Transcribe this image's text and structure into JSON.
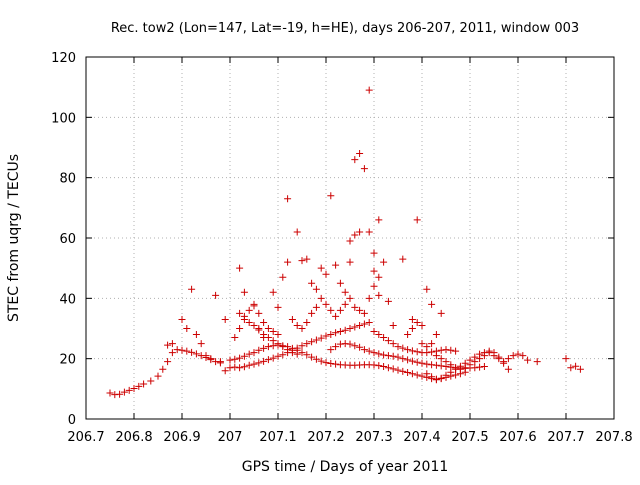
{
  "chart_data": {
    "type": "scatter",
    "title": "Rec. tow2 (Lon=147, Lat=-19, h=HE), days 206-207, 2011, window 003",
    "xlabel": "GPS time / Days of year 2011",
    "ylabel": "STEC from uqrg / TECUs",
    "xlim": [
      206.7,
      207.8
    ],
    "ylim": [
      0,
      120
    ],
    "xticks": [
      "206.7",
      "206.8",
      "206.9",
      "207",
      "207.1",
      "207.2",
      "207.3",
      "207.4",
      "207.5",
      "207.6",
      "207.7",
      "207.8"
    ],
    "yticks": [
      "0",
      "20",
      "40",
      "60",
      "80",
      "100",
      "120"
    ],
    "grid": true,
    "marker": "+",
    "color": "#cc0000",
    "series": [
      {
        "points": [
          [
            206.75,
            8.6
          ],
          [
            206.76,
            8.1
          ],
          [
            206.77,
            8.2
          ],
          [
            206.78,
            8.9
          ],
          [
            206.79,
            9.5
          ],
          [
            206.8,
            10.1
          ],
          [
            206.81,
            10.8
          ],
          [
            206.82,
            11.6
          ],
          [
            206.835,
            12.6
          ],
          [
            206.85,
            14.2
          ],
          [
            206.86,
            16.5
          ],
          [
            206.87,
            19.0
          ],
          [
            206.88,
            22.0
          ],
          [
            206.89,
            23.0
          ],
          [
            206.9,
            22.8
          ],
          [
            206.91,
            22.5
          ],
          [
            206.92,
            22.1
          ],
          [
            206.93,
            21.6
          ],
          [
            206.94,
            21.0
          ],
          [
            206.95,
            20.4
          ],
          [
            206.96,
            19.7
          ],
          [
            206.97,
            19.0
          ],
          [
            206.98,
            18.6
          ],
          [
            206.87,
            24.5
          ],
          [
            206.88,
            25.0
          ],
          [
            206.9,
            33.0
          ],
          [
            206.91,
            30.0
          ],
          [
            206.92,
            43.0
          ],
          [
            206.93,
            28.0
          ],
          [
            206.94,
            25.0
          ],
          [
            206.95,
            21.0
          ],
          [
            206.96,
            20.0
          ],
          [
            206.97,
            41.0
          ],
          [
            206.98,
            19.0
          ],
          [
            206.99,
            16.0
          ],
          [
            206.99,
            33.0
          ],
          [
            207.0,
            17.0
          ],
          [
            207.01,
            17.2
          ],
          [
            207.02,
            17.0
          ],
          [
            207.03,
            17.3
          ],
          [
            207.04,
            17.8
          ],
          [
            207.05,
            18.2
          ],
          [
            207.06,
            18.6
          ],
          [
            207.07,
            19.1
          ],
          [
            207.08,
            19.7
          ],
          [
            207.09,
            20.2
          ],
          [
            207.1,
            20.8
          ],
          [
            207.11,
            21.3
          ],
          [
            207.12,
            22.0
          ],
          [
            207.13,
            22.8
          ],
          [
            207.14,
            23.5
          ],
          [
            207.15,
            24.3
          ],
          [
            207.16,
            25.0
          ],
          [
            207.17,
            25.6
          ],
          [
            207.18,
            26.2
          ],
          [
            207.19,
            26.8
          ],
          [
            207.2,
            27.5
          ],
          [
            207.21,
            28.0
          ],
          [
            207.22,
            28.6
          ],
          [
            207.23,
            29.0
          ],
          [
            207.24,
            29.4
          ],
          [
            207.25,
            30.0
          ],
          [
            207.26,
            30.5
          ],
          [
            207.27,
            31.0
          ],
          [
            207.28,
            31.5
          ],
          [
            207.29,
            32.0
          ],
          [
            207.0,
            19.5
          ],
          [
            207.01,
            19.8
          ],
          [
            207.02,
            20.2
          ],
          [
            207.03,
            20.8
          ],
          [
            207.04,
            21.5
          ],
          [
            207.05,
            22.0
          ],
          [
            207.06,
            22.8
          ],
          [
            207.07,
            23.4
          ],
          [
            207.08,
            24.0
          ],
          [
            207.09,
            24.3
          ],
          [
            207.1,
            24.5
          ],
          [
            207.11,
            24.3
          ],
          [
            207.12,
            24.0
          ],
          [
            207.13,
            23.4
          ],
          [
            207.14,
            22.8
          ],
          [
            207.15,
            22.0
          ],
          [
            207.16,
            21.3
          ],
          [
            207.17,
            20.5
          ],
          [
            207.18,
            19.8
          ],
          [
            207.19,
            19.2
          ],
          [
            207.2,
            18.7
          ],
          [
            207.21,
            18.4
          ],
          [
            207.22,
            18.2
          ],
          [
            207.23,
            18.0
          ],
          [
            207.24,
            17.9
          ],
          [
            207.25,
            17.8
          ],
          [
            207.01,
            27.0
          ],
          [
            207.02,
            30.0
          ],
          [
            207.03,
            33.0
          ],
          [
            207.04,
            32.0
          ],
          [
            207.05,
            31.0
          ],
          [
            207.06,
            29.5
          ],
          [
            207.07,
            28.0
          ],
          [
            207.08,
            27.0
          ],
          [
            207.09,
            26.0
          ],
          [
            207.1,
            25.0
          ],
          [
            207.11,
            24.0
          ],
          [
            207.12,
            23.0
          ],
          [
            207.13,
            22.0
          ],
          [
            207.14,
            21.5
          ],
          [
            207.02,
            35.0
          ],
          [
            207.03,
            34.0
          ],
          [
            207.04,
            36.0
          ],
          [
            207.05,
            37.5
          ],
          [
            207.06,
            35.0
          ],
          [
            207.07,
            32.0
          ],
          [
            207.08,
            30.0
          ],
          [
            207.09,
            29.0
          ],
          [
            207.1,
            28.0
          ],
          [
            207.02,
            50.0
          ],
          [
            207.03,
            42.0
          ],
          [
            207.05,
            38.0
          ],
          [
            207.06,
            30.0
          ],
          [
            207.07,
            27.0
          ],
          [
            207.09,
            42.0
          ],
          [
            207.1,
            37.0
          ],
          [
            207.11,
            47.0
          ],
          [
            207.12,
            52.0
          ],
          [
            207.12,
            73.0
          ],
          [
            207.14,
            62.0
          ],
          [
            207.15,
            52.5
          ],
          [
            207.16,
            53.0
          ],
          [
            207.17,
            45.0
          ],
          [
            207.18,
            43.0
          ],
          [
            207.19,
            50.0
          ],
          [
            207.2,
            48.0
          ],
          [
            207.21,
            74.0
          ],
          [
            207.22,
            51.0
          ],
          [
            207.23,
            45.0
          ],
          [
            207.24,
            42.0
          ],
          [
            207.25,
            52.0
          ],
          [
            207.25,
            59.0
          ],
          [
            207.26,
            61.0
          ],
          [
            207.27,
            62.0
          ],
          [
            207.26,
            86.0
          ],
          [
            207.27,
            88.0
          ],
          [
            207.28,
            83.0
          ],
          [
            207.29,
            62.0
          ],
          [
            207.29,
            109.0
          ],
          [
            207.3,
            55.0
          ],
          [
            207.3,
            49.0
          ],
          [
            207.31,
            66.0
          ],
          [
            207.31,
            47.0
          ],
          [
            207.32,
            52.0
          ],
          [
            207.33,
            39.0
          ],
          [
            207.34,
            31.0
          ],
          [
            207.36,
            53.0
          ],
          [
            207.38,
            33.0
          ],
          [
            207.39,
            66.0
          ],
          [
            207.4,
            31.0
          ],
          [
            207.41,
            43.0
          ],
          [
            207.42,
            38.0
          ],
          [
            207.43,
            28.0
          ],
          [
            207.44,
            35.0
          ],
          [
            207.13,
            33.0
          ],
          [
            207.14,
            31.0
          ],
          [
            207.15,
            30.0
          ],
          [
            207.16,
            32.0
          ],
          [
            207.17,
            35.0
          ],
          [
            207.18,
            37.0
          ],
          [
            207.19,
            40.0
          ],
          [
            207.2,
            38.0
          ],
          [
            207.21,
            36.0
          ],
          [
            207.22,
            34.0
          ],
          [
            207.23,
            36.0
          ],
          [
            207.24,
            38.0
          ],
          [
            207.25,
            40.0
          ],
          [
            207.26,
            37.0
          ],
          [
            207.27,
            36.0
          ],
          [
            207.28,
            35.0
          ],
          [
            207.29,
            40.0
          ],
          [
            207.3,
            44.0
          ],
          [
            207.31,
            41.0
          ],
          [
            207.21,
            23.0
          ],
          [
            207.22,
            24.0
          ],
          [
            207.23,
            24.8
          ],
          [
            207.24,
            25.0
          ],
          [
            207.25,
            24.8
          ],
          [
            207.26,
            24.3
          ],
          [
            207.27,
            23.8
          ],
          [
            207.28,
            23.0
          ],
          [
            207.29,
            22.5
          ],
          [
            207.3,
            22.0
          ],
          [
            207.31,
            21.6
          ],
          [
            207.32,
            21.2
          ],
          [
            207.33,
            21.0
          ],
          [
            207.34,
            20.8
          ],
          [
            207.35,
            20.5
          ],
          [
            207.36,
            20.0
          ],
          [
            207.37,
            19.6
          ],
          [
            207.38,
            19.2
          ],
          [
            207.39,
            18.8
          ],
          [
            207.4,
            18.5
          ],
          [
            207.41,
            18.2
          ],
          [
            207.42,
            18.0
          ],
          [
            207.43,
            17.8
          ],
          [
            207.44,
            17.6
          ],
          [
            207.45,
            17.4
          ],
          [
            207.46,
            17.2
          ],
          [
            207.47,
            17.0
          ],
          [
            207.48,
            16.9
          ],
          [
            207.49,
            16.8
          ],
          [
            207.5,
            16.9
          ],
          [
            207.51,
            17.0
          ],
          [
            207.52,
            17.2
          ],
          [
            207.53,
            17.4
          ],
          [
            207.26,
            17.8
          ],
          [
            207.27,
            17.9
          ],
          [
            207.28,
            18.0
          ],
          [
            207.29,
            18.0
          ],
          [
            207.3,
            17.9
          ],
          [
            207.31,
            17.7
          ],
          [
            207.32,
            17.4
          ],
          [
            207.33,
            17.0
          ],
          [
            207.34,
            16.6
          ],
          [
            207.35,
            16.2
          ],
          [
            207.36,
            15.8
          ],
          [
            207.37,
            15.4
          ],
          [
            207.38,
            15.0
          ],
          [
            207.39,
            14.6
          ],
          [
            207.4,
            14.2
          ],
          [
            207.41,
            13.8
          ],
          [
            207.42,
            13.4
          ],
          [
            207.43,
            13.2
          ],
          [
            207.44,
            13.4
          ],
          [
            207.45,
            13.8
          ],
          [
            207.46,
            14.2
          ],
          [
            207.47,
            14.6
          ],
          [
            207.48,
            15.0
          ],
          [
            207.49,
            15.5
          ],
          [
            207.3,
            29.0
          ],
          [
            207.31,
            28.0
          ],
          [
            207.32,
            27.0
          ],
          [
            207.33,
            26.0
          ],
          [
            207.34,
            25.0
          ],
          [
            207.35,
            24.0
          ],
          [
            207.36,
            23.5
          ],
          [
            207.37,
            23.0
          ],
          [
            207.38,
            22.6
          ],
          [
            207.39,
            22.3
          ],
          [
            207.4,
            22.0
          ],
          [
            207.41,
            22.0
          ],
          [
            207.42,
            22.2
          ],
          [
            207.43,
            22.5
          ],
          [
            207.44,
            22.8
          ],
          [
            207.45,
            23.0
          ],
          [
            207.46,
            22.8
          ],
          [
            207.47,
            22.5
          ],
          [
            207.37,
            28.0
          ],
          [
            207.38,
            30.0
          ],
          [
            207.39,
            32.0
          ],
          [
            207.4,
            25.0
          ],
          [
            207.41,
            24.0
          ],
          [
            207.42,
            25.0
          ],
          [
            207.43,
            21.0
          ],
          [
            207.44,
            20.0
          ],
          [
            207.45,
            19.0
          ],
          [
            207.46,
            18.0
          ],
          [
            207.47,
            17.0
          ],
          [
            207.48,
            16.5
          ],
          [
            207.49,
            17.0
          ],
          [
            207.5,
            18.0
          ],
          [
            207.51,
            19.0
          ],
          [
            207.52,
            20.0
          ],
          [
            207.53,
            21.0
          ],
          [
            207.54,
            22.0
          ],
          [
            207.55,
            21.0
          ],
          [
            207.56,
            20.0
          ],
          [
            207.57,
            19.0
          ],
          [
            207.58,
            20.0
          ],
          [
            207.59,
            21.0
          ],
          [
            207.6,
            21.5
          ],
          [
            207.61,
            21.0
          ],
          [
            207.62,
            19.5
          ],
          [
            207.64,
            19.0
          ],
          [
            207.41,
            15.0
          ],
          [
            207.42,
            14.0
          ],
          [
            207.43,
            13.0
          ],
          [
            207.44,
            13.5
          ],
          [
            207.45,
            14.5
          ],
          [
            207.46,
            15.5
          ],
          [
            207.47,
            16.5
          ],
          [
            207.48,
            17.5
          ],
          [
            207.49,
            18.5
          ],
          [
            207.5,
            19.5
          ],
          [
            207.51,
            20.5
          ],
          [
            207.52,
            21.5
          ],
          [
            207.53,
            22.0
          ],
          [
            207.54,
            22.5
          ],
          [
            207.55,
            22.0
          ],
          [
            207.56,
            20.5
          ],
          [
            207.57,
            18.5
          ],
          [
            207.58,
            16.5
          ],
          [
            207.7,
            20.0
          ],
          [
            207.71,
            17.0
          ],
          [
            207.72,
            17.5
          ],
          [
            207.73,
            16.5
          ]
        ]
      }
    ]
  }
}
